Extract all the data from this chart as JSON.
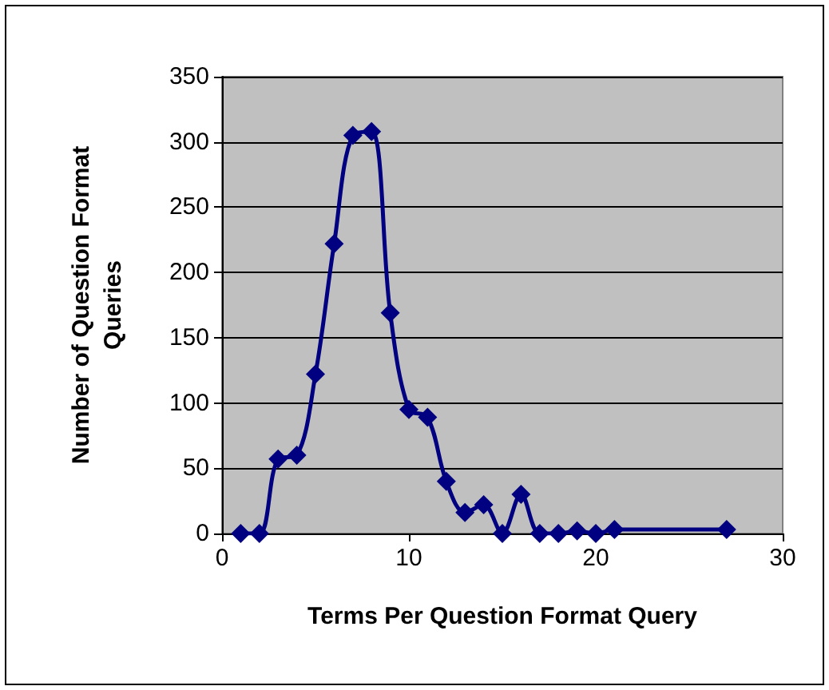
{
  "chart_data": {
    "type": "line",
    "xlabel": "Terms Per Question Format Query",
    "ylabel": "Number of Question Format Queries",
    "x": [
      1,
      2,
      3,
      4,
      5,
      6,
      7,
      8,
      9,
      10,
      11,
      12,
      13,
      14,
      15,
      16,
      17,
      18,
      19,
      20,
      21,
      27
    ],
    "series": [
      {
        "color": "#000080",
        "values": [
          0,
          0,
          57,
          60,
          122,
          222,
          305,
          308,
          169,
          95,
          89,
          40,
          16,
          22,
          0,
          30,
          0,
          0,
          2,
          0,
          3,
          3
        ]
      }
    ],
    "xlim": [
      0,
      30
    ],
    "xticks": [
      0,
      10,
      20,
      30
    ],
    "ylim": [
      0,
      350
    ],
    "yticks": [
      0,
      50,
      100,
      150,
      200,
      250,
      300,
      350
    ],
    "grid": "y",
    "marker": "diamond",
    "line_style": "solid"
  }
}
